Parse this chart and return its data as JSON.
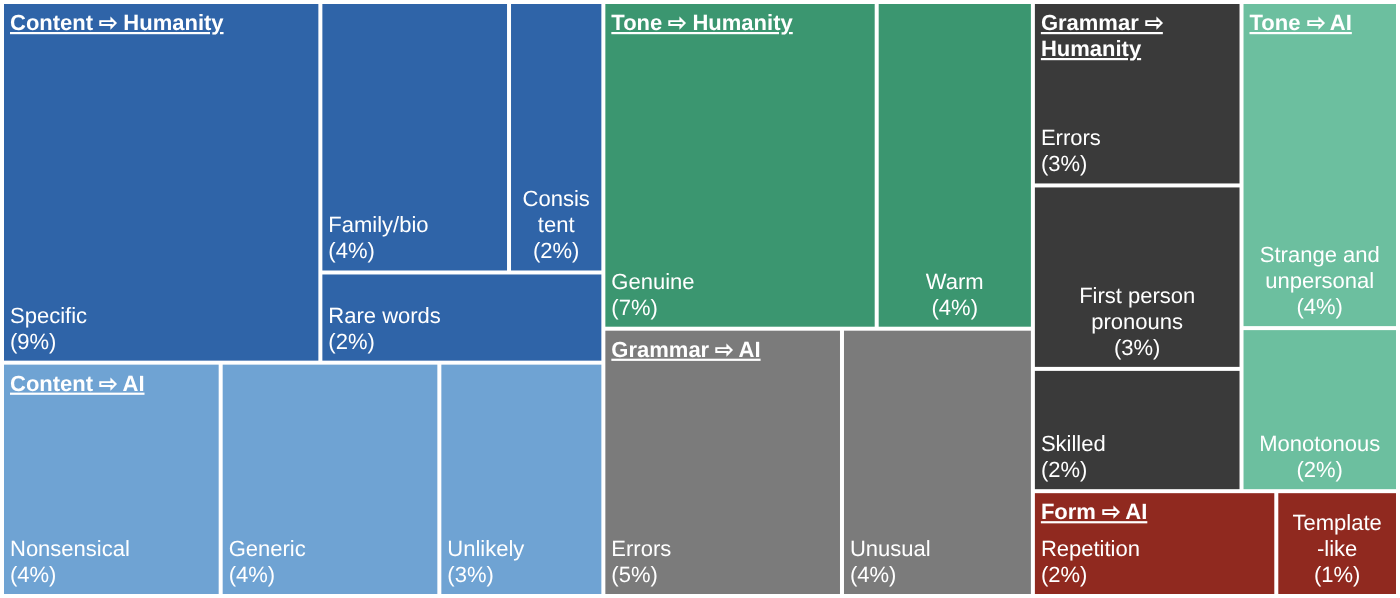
{
  "chart_data": {
    "type": "other",
    "categories": [
      "Specific",
      "Family/bio",
      "Consistent",
      "Rare words",
      "Nonsensical",
      "Generic",
      "Unlikely",
      "Genuine",
      "Warm",
      "Errors",
      "Unusual",
      "Errors",
      "First person pronouns",
      "Skilled",
      "Strange and unpersonal",
      "Monotonous",
      "Repetition",
      "Template-like"
    ],
    "values": [
      9,
      4,
      2,
      2,
      4,
      4,
      3,
      7,
      4,
      5,
      4,
      3,
      3,
      2,
      4,
      2,
      2,
      1
    ],
    "value_labels": [
      "(9%)",
      "(4%)",
      "(2%)",
      "(2%)",
      "(4%)",
      "(4%)",
      "(3%)",
      "(7%)",
      "(4%)",
      "(5%)",
      "(4%)",
      "(3%)",
      "(3%)",
      "(2%)",
      "(4%)",
      "(2%)",
      "(2%)",
      "(1%)"
    ],
    "colors": [
      "#2f64a8",
      "#2f64a8",
      "#2f64a8",
      "#2f64a8",
      "#6fa3d3",
      "#6fa3d3",
      "#6fa3d3",
      "#3b9670",
      "#3b9670",
      "#7b7b7b",
      "#7b7b7b",
      "#3a3a3a",
      "#3a3a3a",
      "#3a3a3a",
      "#6cbf9f",
      "#6cbf9f",
      "#90291f",
      "#90291f"
    ],
    "annotations": [
      "Content ⇨ Humanity",
      "Content ⇨ AI",
      "Tone ⇨ Humanity",
      "Grammar ⇨ AI",
      "Grammar ⇨ Humanity",
      "Tone ⇨ AI",
      "Form ⇨ AI"
    ]
  }
}
